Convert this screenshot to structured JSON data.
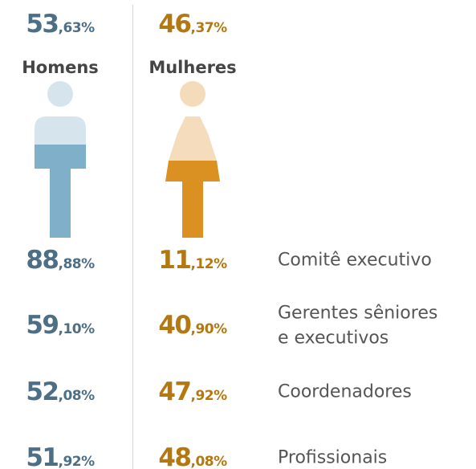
{
  "summary": {
    "men": {
      "value": "53,63%",
      "label": "Homens"
    },
    "women": {
      "value": "46,37%",
      "label": "Mulheres"
    }
  },
  "rows": [
    {
      "men": "88,88%",
      "women": "11,12%",
      "label": [
        "Comitê executivo"
      ]
    },
    {
      "men": "59,10%",
      "women": "40,90%",
      "label": [
        "Gerentes sêniores",
        "e executivos"
      ]
    },
    {
      "men": "52,08%",
      "women": "47,92%",
      "label": [
        "Coordenadores"
      ]
    },
    {
      "men": "51,92%",
      "women": "48,08%",
      "label": [
        "Profissionais"
      ]
    }
  ]
}
